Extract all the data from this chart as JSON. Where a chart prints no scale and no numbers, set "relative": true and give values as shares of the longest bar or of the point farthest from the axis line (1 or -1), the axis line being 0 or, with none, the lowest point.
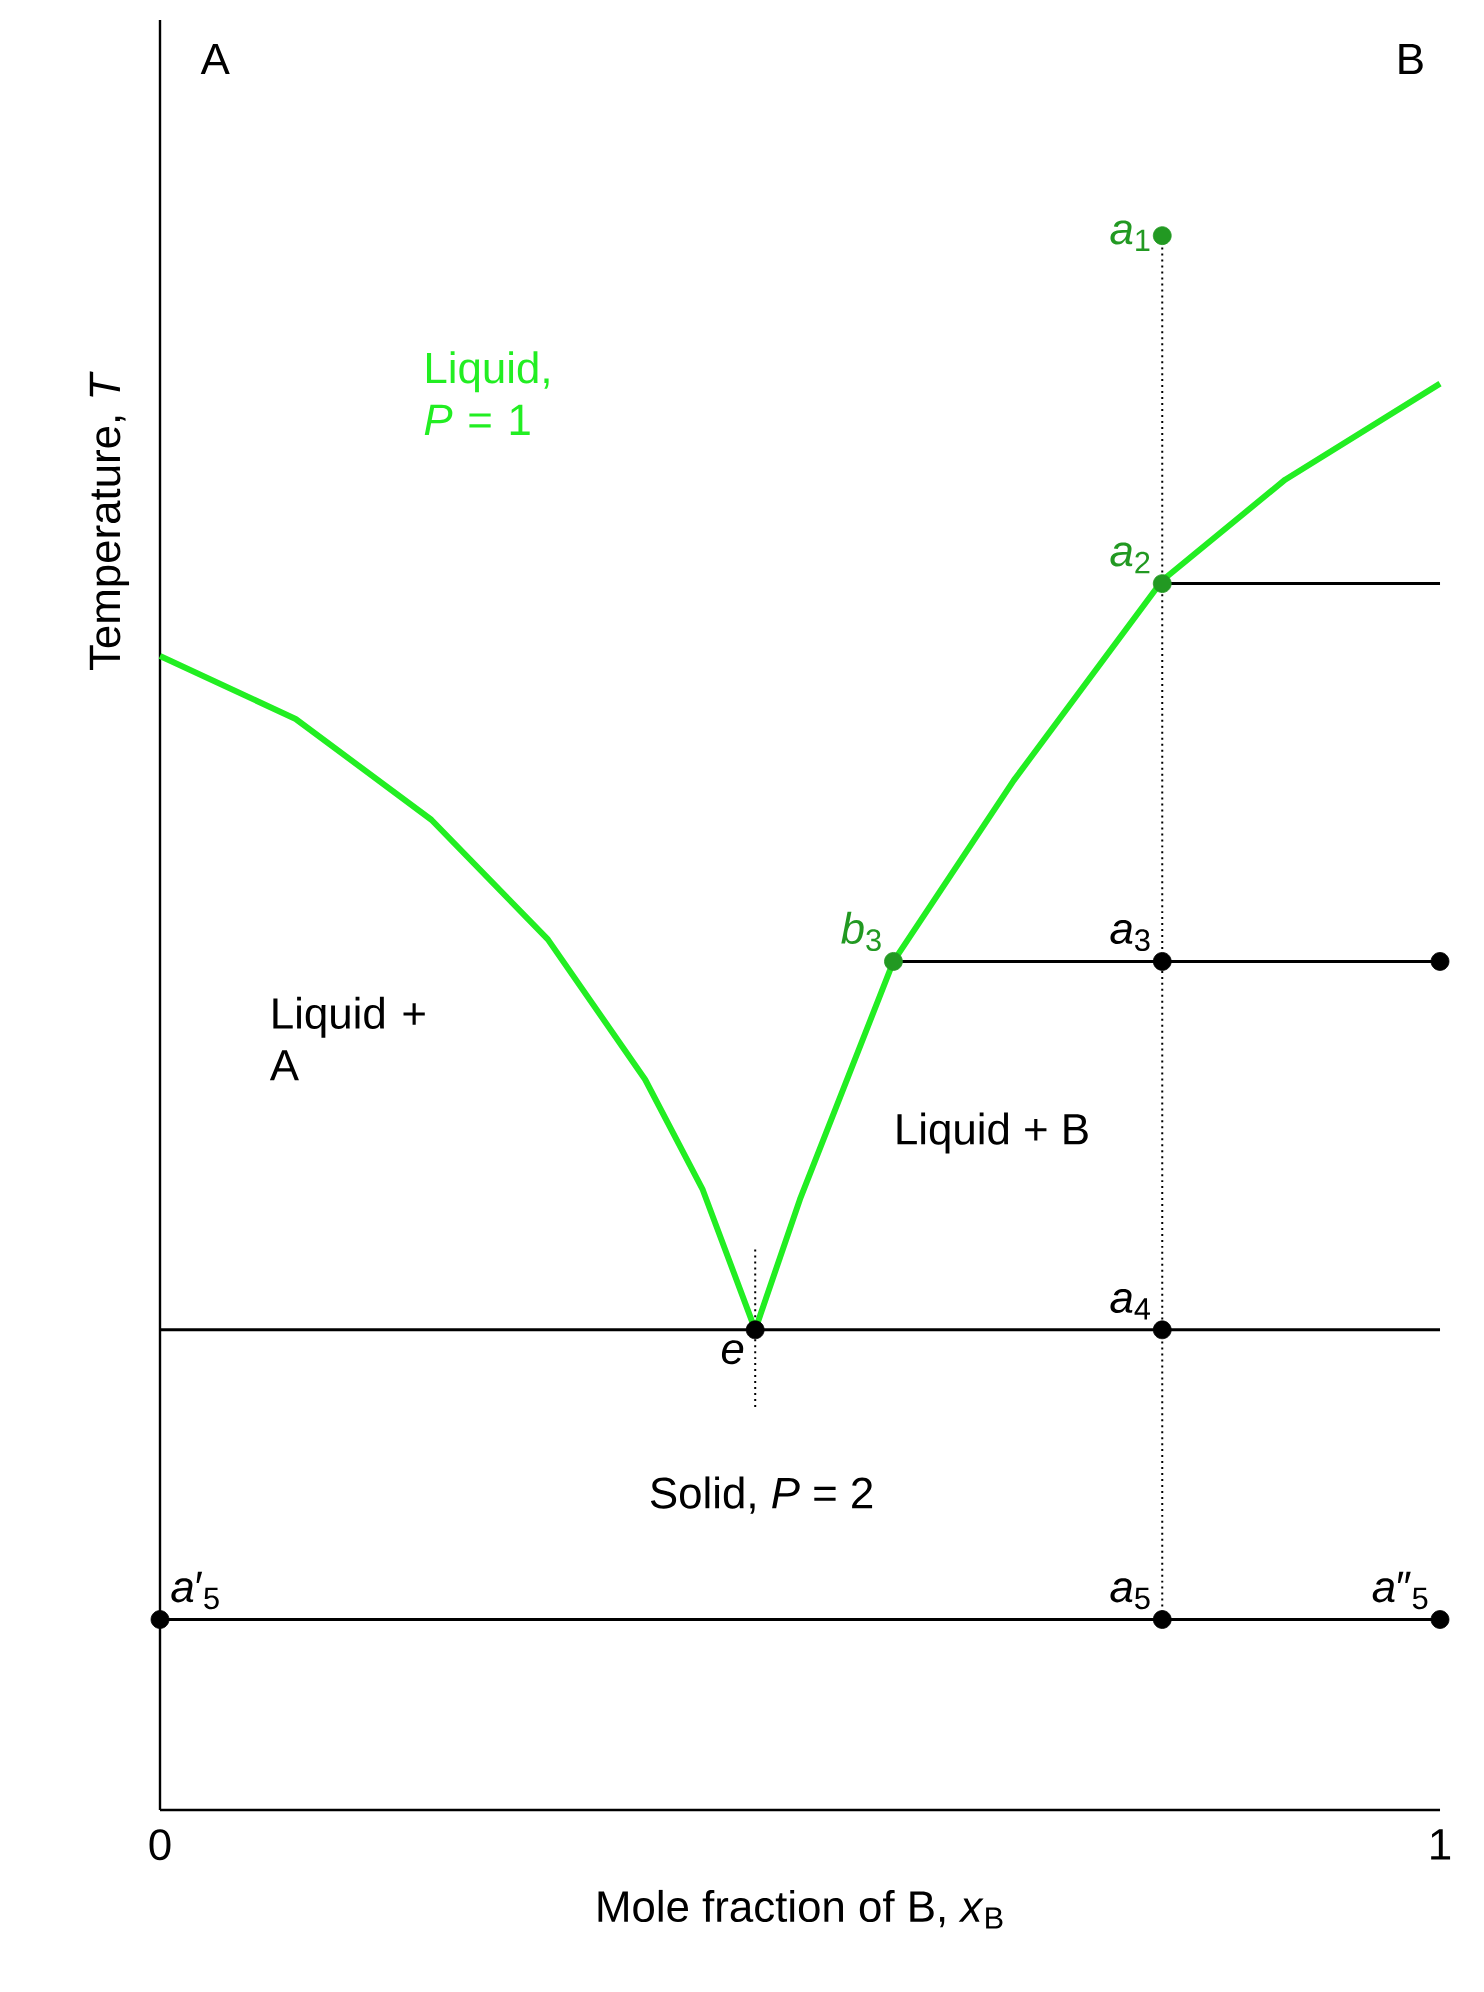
{
  "chart_data": {
    "type": "line",
    "relative": true,
    "xlabel": "Mole fraction of B, *x*$_{B}$",
    "ylabel": "Temperature, *T*",
    "xlim": [
      0,
      1
    ],
    "xticks": [
      0,
      1
    ],
    "series": [
      {
        "color": "#22ee22",
        "x": [
          0,
          0.106,
          0.212,
          0.303,
          0.379,
          0.424,
          0.465
        ],
        "values": [
          0.733,
          0.693,
          0.629,
          0.553,
          0.464,
          0.394,
          0.305
        ]
      },
      {
        "color": "#22ee22",
        "x": [
          0.465,
          0.5,
          0.573,
          0.667,
          0.783,
          0.879,
          1
        ],
        "values": [
          0.305,
          0.388,
          0.539,
          0.654,
          0.781,
          0.845,
          0.906
        ]
      },
      {
        "type": "line",
        "color": "#000000",
        "x": [
          0,
          1
        ],
        "values": [
          0.305,
          0.305
        ]
      },
      {
        "type": "line",
        "color": "#000000",
        "x": [
          0,
          1
        ],
        "values": [
          0.121,
          0.121
        ]
      },
      {
        "type": "line",
        "color": "#000000",
        "x": [
          0.573,
          1
        ],
        "values": [
          0.539,
          0.539
        ]
      },
      {
        "type": "line",
        "color": "#000000",
        "x": [
          0.783,
          1
        ],
        "values": [
          0.779,
          0.779
        ]
      },
      {
        "type": "line",
        "color": "#000000",
        "line_style": "dotted",
        "x": [
          0.783,
          0.783
        ],
        "values": [
          1,
          0.121
        ]
      },
      {
        "type": "line",
        "color": "#000000",
        "line_style": "dotted",
        "x": [
          0.465,
          0.465
        ],
        "values": [
          0.356,
          0.254
        ]
      },
      {
        "type": "scatter",
        "color": "#229922",
        "marker": "circle",
        "x": [
          0.783,
          0.783,
          0.573
        ],
        "values": [
          1,
          0.779,
          0.539
        ]
      },
      {
        "type": "scatter",
        "color": "#000000",
        "marker": "circle",
        "x": [
          0.783,
          1,
          0.465,
          0.783,
          0,
          0.783,
          1
        ],
        "values": [
          0.539,
          0.539,
          0.305,
          0.305,
          0.121,
          0.121,
          0.121
        ]
      }
    ],
    "annotations": [
      "A",
      "B",
      "Liquid, *P* = 1",
      "Liquid + A",
      "Liquid + B",
      "Solid, *P* = 2",
      {
        "text": "*a*$_{1}$",
        "x": 0.783,
        "y": 1
      },
      {
        "text": "*a*$_{2}$",
        "x": 0.783,
        "y": 0.779
      },
      {
        "text": "*b*$_{3}$",
        "x": 0.573,
        "y": 0.539
      },
      {
        "text": "*a*$_{3}$",
        "x": 0.783,
        "y": 0.539
      },
      {
        "text": "*a*$_{4}$",
        "x": 0.783,
        "y": 0.305
      },
      {
        "text": "*e*",
        "x": 0.465,
        "y": 0.305
      },
      {
        "text": "*a*$_{5}$",
        "x": 0.783,
        "y": 0.121
      },
      {
        "text": "*a*′$_{5}$",
        "x": 0,
        "y": 0.121
      },
      {
        "text": "*a*″$_{5}$",
        "x": 1,
        "y": 0.121
      }
    ]
  }
}
